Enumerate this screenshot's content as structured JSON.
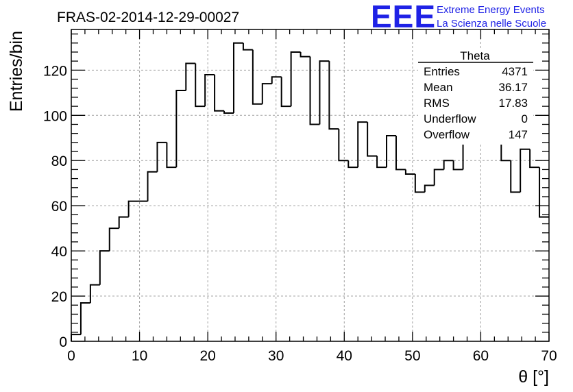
{
  "header": {
    "title": "FRAS-02-2014-12-29-00027",
    "logo_text": "EEE",
    "logo_line1": "Extreme Energy Events",
    "logo_line2": "La Scienza nelle Scuole",
    "logo_color": "#1f22e6"
  },
  "stats_box": {
    "name": "Theta",
    "rows": [
      {
        "label": "Entries",
        "value": "4371"
      },
      {
        "label": "Mean",
        "value": "36.17"
      },
      {
        "label": "RMS",
        "value": "17.83"
      },
      {
        "label": "Underflow",
        "value": "0"
      },
      {
        "label": "Overflow",
        "value": "147"
      }
    ]
  },
  "chart_data": {
    "type": "histogram",
    "xlabel": "θ [°]",
    "ylabel": "Entries/bin",
    "xlim": [
      0,
      70
    ],
    "ylim": [
      0,
      138
    ],
    "xticks": [
      0,
      10,
      20,
      30,
      40,
      50,
      60,
      70
    ],
    "yticks": [
      0,
      20,
      40,
      60,
      80,
      100,
      120
    ],
    "grid": true,
    "bin_width": 1.4,
    "bin_values": [
      3,
      17,
      25,
      40,
      50,
      55,
      62,
      62,
      75,
      88,
      77,
      111,
      123,
      104,
      118,
      102,
      101,
      132,
      129,
      105,
      114,
      117,
      104,
      128,
      126,
      96,
      124,
      94,
      80,
      77,
      97,
      82,
      77,
      91,
      76,
      74,
      66,
      69,
      76,
      80,
      76,
      88,
      89,
      90,
      90,
      80,
      66,
      85,
      77,
      55
    ]
  }
}
